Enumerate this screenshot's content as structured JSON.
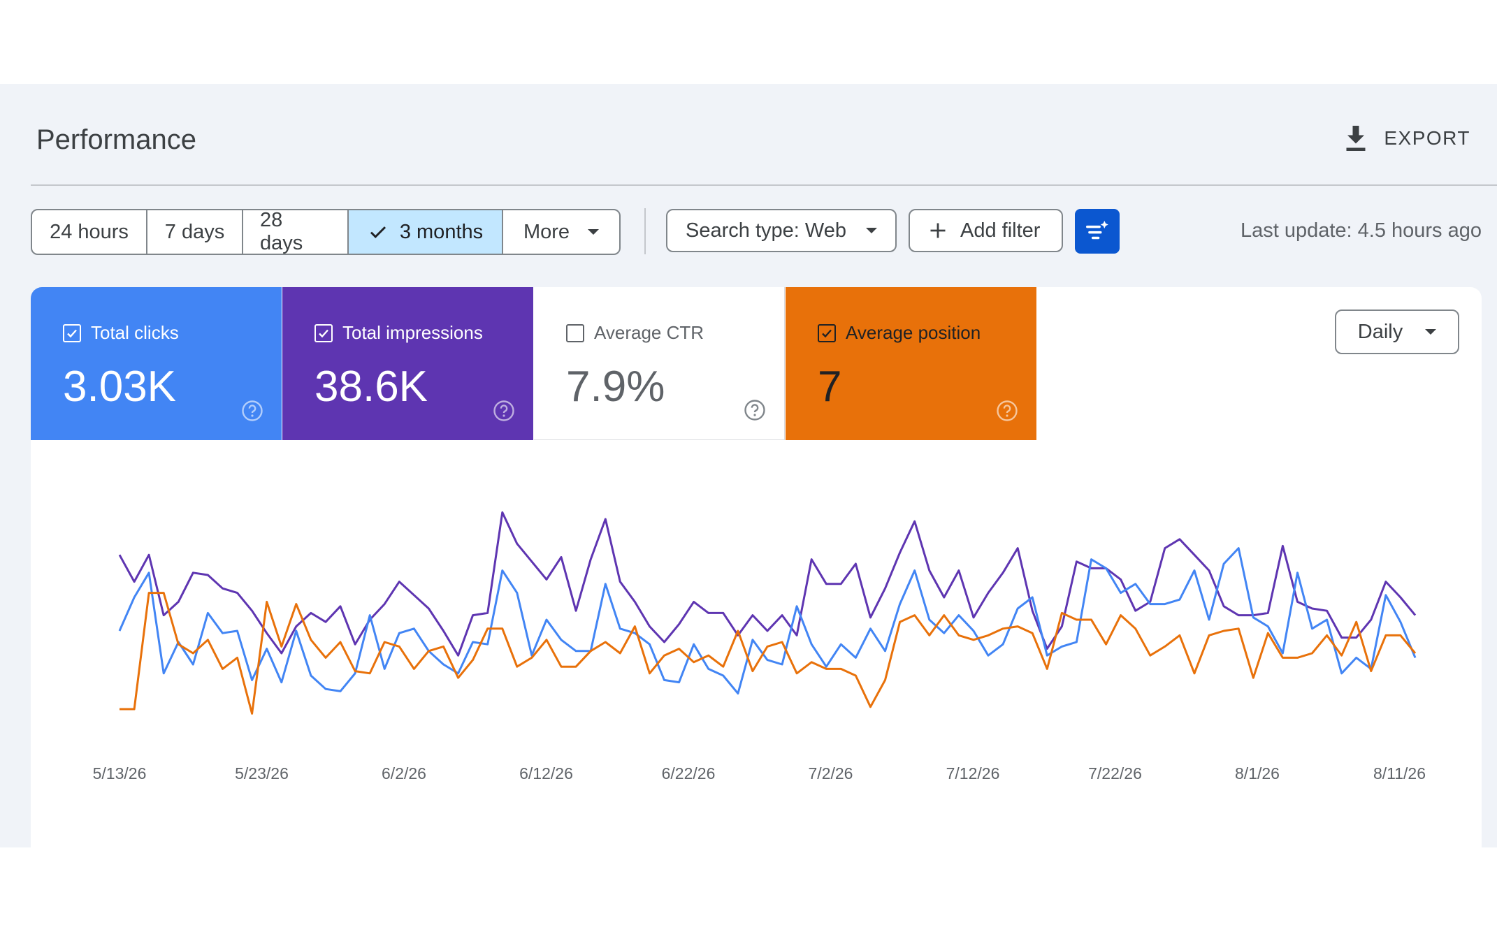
{
  "header": {
    "title": "Performance",
    "export_label": "EXPORT"
  },
  "date_range": {
    "options": [
      "24 hours",
      "7 days",
      "28 days",
      "3 months"
    ],
    "selected": "3 months",
    "more_label": "More"
  },
  "filters": {
    "search_type_label": "Search type: Web",
    "add_filter_label": "Add filter",
    "last_update": "Last update: 4.5 hours ago"
  },
  "metrics": [
    {
      "label": "Total clicks",
      "value": "3.03K",
      "checked": true,
      "color": "#4285f4"
    },
    {
      "label": "Total impressions",
      "value": "38.6K",
      "checked": true,
      "color": "#5e35b1"
    },
    {
      "label": "Average CTR",
      "value": "7.9%",
      "checked": false,
      "color": "#ffffff"
    },
    {
      "label": "Average position",
      "value": "7",
      "checked": true,
      "color": "#e8710a"
    }
  ],
  "granularity": "Daily",
  "icons": {
    "export": "download-icon",
    "selected": "check-icon",
    "dropdown": "arrow-drop-down-icon",
    "add_filter": "plus-icon",
    "ai_filter": "filter-sparkle-icon",
    "help": "help-circle-icon"
  },
  "chart_data": {
    "type": "line",
    "x_ticks": [
      "5/13/26",
      "5/23/26",
      "6/2/26",
      "6/12/26",
      "6/22/26",
      "7/2/26",
      "7/12/26",
      "7/22/26",
      "8/1/26",
      "8/11/26"
    ],
    "grid": false,
    "legend": "none",
    "axes_values_hidden": true,
    "series": [
      {
        "name": "Total impressions",
        "color": "#5e35b1",
        "values": [
          0.74,
          0.62,
          0.74,
          0.47,
          0.53,
          0.66,
          0.65,
          0.59,
          0.57,
          0.49,
          0.39,
          0.3,
          0.42,
          0.48,
          0.44,
          0.51,
          0.34,
          0.45,
          0.52,
          0.62,
          0.56,
          0.5,
          0.4,
          0.29,
          0.47,
          0.48,
          0.93,
          0.79,
          0.71,
          0.63,
          0.73,
          0.49,
          0.72,
          0.9,
          0.62,
          0.53,
          0.42,
          0.35,
          0.43,
          0.53,
          0.48,
          0.48,
          0.38,
          0.47,
          0.4,
          0.47,
          0.38,
          0.72,
          0.61,
          0.61,
          0.7,
          0.46,
          0.59,
          0.75,
          0.89,
          0.67,
          0.55,
          0.67,
          0.46,
          0.57,
          0.66,
          0.77,
          0.49,
          0.32,
          0.42,
          0.71,
          0.68,
          0.68,
          0.63,
          0.49,
          0.53,
          0.77,
          0.81,
          0.74,
          0.67,
          0.51,
          0.47,
          0.47,
          0.48,
          0.78,
          0.53,
          0.5,
          0.49,
          0.37,
          0.37,
          0.45,
          0.62,
          0.55,
          0.47
        ]
      },
      {
        "name": "Total clicks",
        "color": "#4285f4",
        "values": [
          0.4,
          0.55,
          0.66,
          0.21,
          0.35,
          0.25,
          0.48,
          0.39,
          0.4,
          0.18,
          0.32,
          0.17,
          0.4,
          0.2,
          0.14,
          0.13,
          0.21,
          0.47,
          0.23,
          0.39,
          0.41,
          0.31,
          0.25,
          0.21,
          0.35,
          0.34,
          0.67,
          0.57,
          0.29,
          0.45,
          0.36,
          0.31,
          0.31,
          0.61,
          0.41,
          0.39,
          0.34,
          0.18,
          0.17,
          0.34,
          0.23,
          0.2,
          0.12,
          0.36,
          0.27,
          0.25,
          0.51,
          0.34,
          0.24,
          0.34,
          0.28,
          0.41,
          0.31,
          0.52,
          0.67,
          0.45,
          0.39,
          0.47,
          0.4,
          0.29,
          0.34,
          0.5,
          0.55,
          0.29,
          0.33,
          0.35,
          0.72,
          0.68,
          0.57,
          0.61,
          0.52,
          0.52,
          0.54,
          0.67,
          0.45,
          0.7,
          0.77,
          0.46,
          0.42,
          0.3,
          0.66,
          0.41,
          0.45,
          0.21,
          0.28,
          0.23,
          0.56,
          0.44,
          0.28
        ]
      },
      {
        "name": "Average position",
        "color": "#e8710a",
        "values": [
          0.05,
          0.05,
          0.57,
          0.57,
          0.34,
          0.3,
          0.36,
          0.23,
          0.28,
          0.03,
          0.53,
          0.33,
          0.52,
          0.36,
          0.28,
          0.35,
          0.22,
          0.21,
          0.35,
          0.33,
          0.23,
          0.31,
          0.33,
          0.19,
          0.27,
          0.41,
          0.41,
          0.24,
          0.28,
          0.36,
          0.24,
          0.24,
          0.31,
          0.35,
          0.3,
          0.42,
          0.21,
          0.29,
          0.32,
          0.26,
          0.29,
          0.24,
          0.4,
          0.22,
          0.33,
          0.35,
          0.21,
          0.26,
          0.23,
          0.23,
          0.2,
          0.06,
          0.18,
          0.44,
          0.47,
          0.38,
          0.47,
          0.38,
          0.36,
          0.38,
          0.41,
          0.42,
          0.39,
          0.23,
          0.48,
          0.45,
          0.45,
          0.34,
          0.47,
          0.41,
          0.29,
          0.33,
          0.38,
          0.21,
          0.38,
          0.4,
          0.41,
          0.19,
          0.39,
          0.28,
          0.28,
          0.3,
          0.38,
          0.29,
          0.44,
          0.22,
          0.38,
          0.38,
          0.3
        ]
      }
    ]
  }
}
